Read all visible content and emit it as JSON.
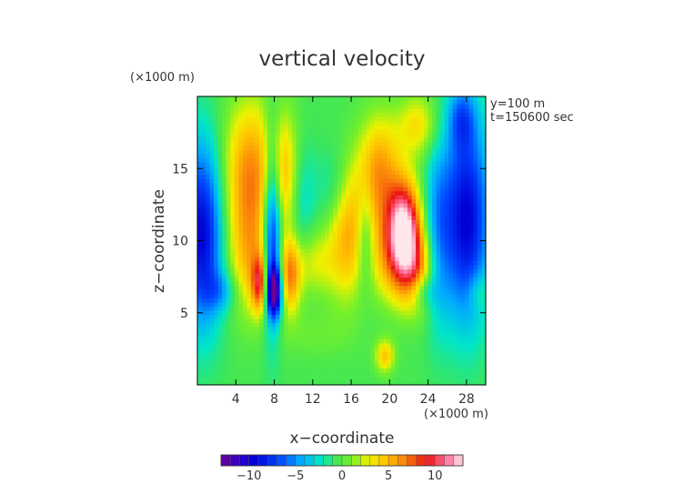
{
  "chart_data": {
    "type": "heatmap",
    "title": "vertical velocity",
    "xlabel": "x−coordinate",
    "ylabel": "z−coordinate",
    "x_unit": "(×1000 m)",
    "y_unit": "(×1000 m)",
    "annotations": [
      "y=100 m",
      "t=150600 sec"
    ],
    "xlim": [
      0,
      30
    ],
    "ylim": [
      0,
      20
    ],
    "x_ticks": [
      4,
      8,
      12,
      16,
      20,
      24,
      28
    ],
    "y_ticks": [
      5,
      10,
      15
    ],
    "colorbar": {
      "range": [
        -13,
        13
      ],
      "ticks": [
        -10,
        -5,
        0,
        5,
        10
      ],
      "tick_labels": [
        "−10",
        "−5",
        "0",
        "5",
        "10"
      ]
    },
    "background_value": -0.5,
    "features": [
      {
        "x": 0.5,
        "z": 10.5,
        "value": -9,
        "sx": 1.6,
        "sz": 4.5
      },
      {
        "x": 5.5,
        "z": 14.5,
        "value": 7,
        "sx": 2.0,
        "sz": 3.6
      },
      {
        "x": 5.3,
        "z": 8.5,
        "value": 4,
        "sx": 1.6,
        "sz": 2.8
      },
      {
        "x": 6.5,
        "z": 7.0,
        "value": 8,
        "sx": 0.6,
        "sz": 1.4
      },
      {
        "x": 7.8,
        "z": 11.0,
        "value": -10,
        "sx": 0.7,
        "sz": 4.5
      },
      {
        "x": 8.0,
        "z": 6.5,
        "value": -11,
        "sx": 0.6,
        "sz": 1.2
      },
      {
        "x": 9.0,
        "z": 14.5,
        "value": 5,
        "sx": 1.3,
        "sz": 3.0
      },
      {
        "x": 9.6,
        "z": 7.5,
        "value": 7,
        "sx": 0.8,
        "sz": 1.8
      },
      {
        "x": 10.8,
        "z": 13.0,
        "value": -3,
        "sx": 1.0,
        "sz": 3.0
      },
      {
        "x": 12.0,
        "z": 8.5,
        "value": 3,
        "sx": 1.5,
        "sz": 1.6
      },
      {
        "x": 15.5,
        "z": 10.0,
        "value": 5,
        "sx": 1.5,
        "sz": 3.0
      },
      {
        "x": 14.0,
        "z": 13.5,
        "value": -2,
        "sx": 1.2,
        "sz": 2.0
      },
      {
        "x": 17.5,
        "z": 10.5,
        "value": -4,
        "sx": 0.7,
        "sz": 2.5
      },
      {
        "x": 18.5,
        "z": 12.5,
        "value": 4,
        "sx": 2.0,
        "sz": 3.0
      },
      {
        "x": 19.0,
        "z": 15.5,
        "value": 4,
        "sx": 1.5,
        "sz": 2.5
      },
      {
        "x": 20.0,
        "z": 8.5,
        "value": 3,
        "sx": 1.5,
        "sz": 2.0
      },
      {
        "x": 21.5,
        "z": 11.0,
        "value": 12,
        "sx": 1.2,
        "sz": 2.2
      },
      {
        "x": 22.5,
        "z": 8.0,
        "value": 7,
        "sx": 1.5,
        "sz": 2.0
      },
      {
        "x": 23.0,
        "z": 18.0,
        "value": 4,
        "sx": 1.5,
        "sz": 1.5
      },
      {
        "x": 25.0,
        "z": 10.5,
        "value": -4,
        "sx": 1.0,
        "sz": 4.5
      },
      {
        "x": 28.0,
        "z": 11.5,
        "value": -9,
        "sx": 1.7,
        "sz": 5.0
      },
      {
        "x": 27.5,
        "z": 18.5,
        "value": -4,
        "sx": 1.0,
        "sz": 1.5
      },
      {
        "x": 29.2,
        "z": 6.5,
        "value": 2,
        "sx": 0.8,
        "sz": 1.0
      },
      {
        "x": 23.5,
        "z": 6.5,
        "value": -3,
        "sx": 1.0,
        "sz": 0.8
      },
      {
        "x": 19.5,
        "z": 2.0,
        "value": 5,
        "sx": 0.7,
        "sz": 0.8
      },
      {
        "x": 12.0,
        "z": 3.5,
        "value": 1,
        "sx": 3.0,
        "sz": 1.2
      },
      {
        "x": 2.5,
        "z": 6.5,
        "value": -3,
        "sx": 1.2,
        "sz": 1.0
      }
    ]
  }
}
